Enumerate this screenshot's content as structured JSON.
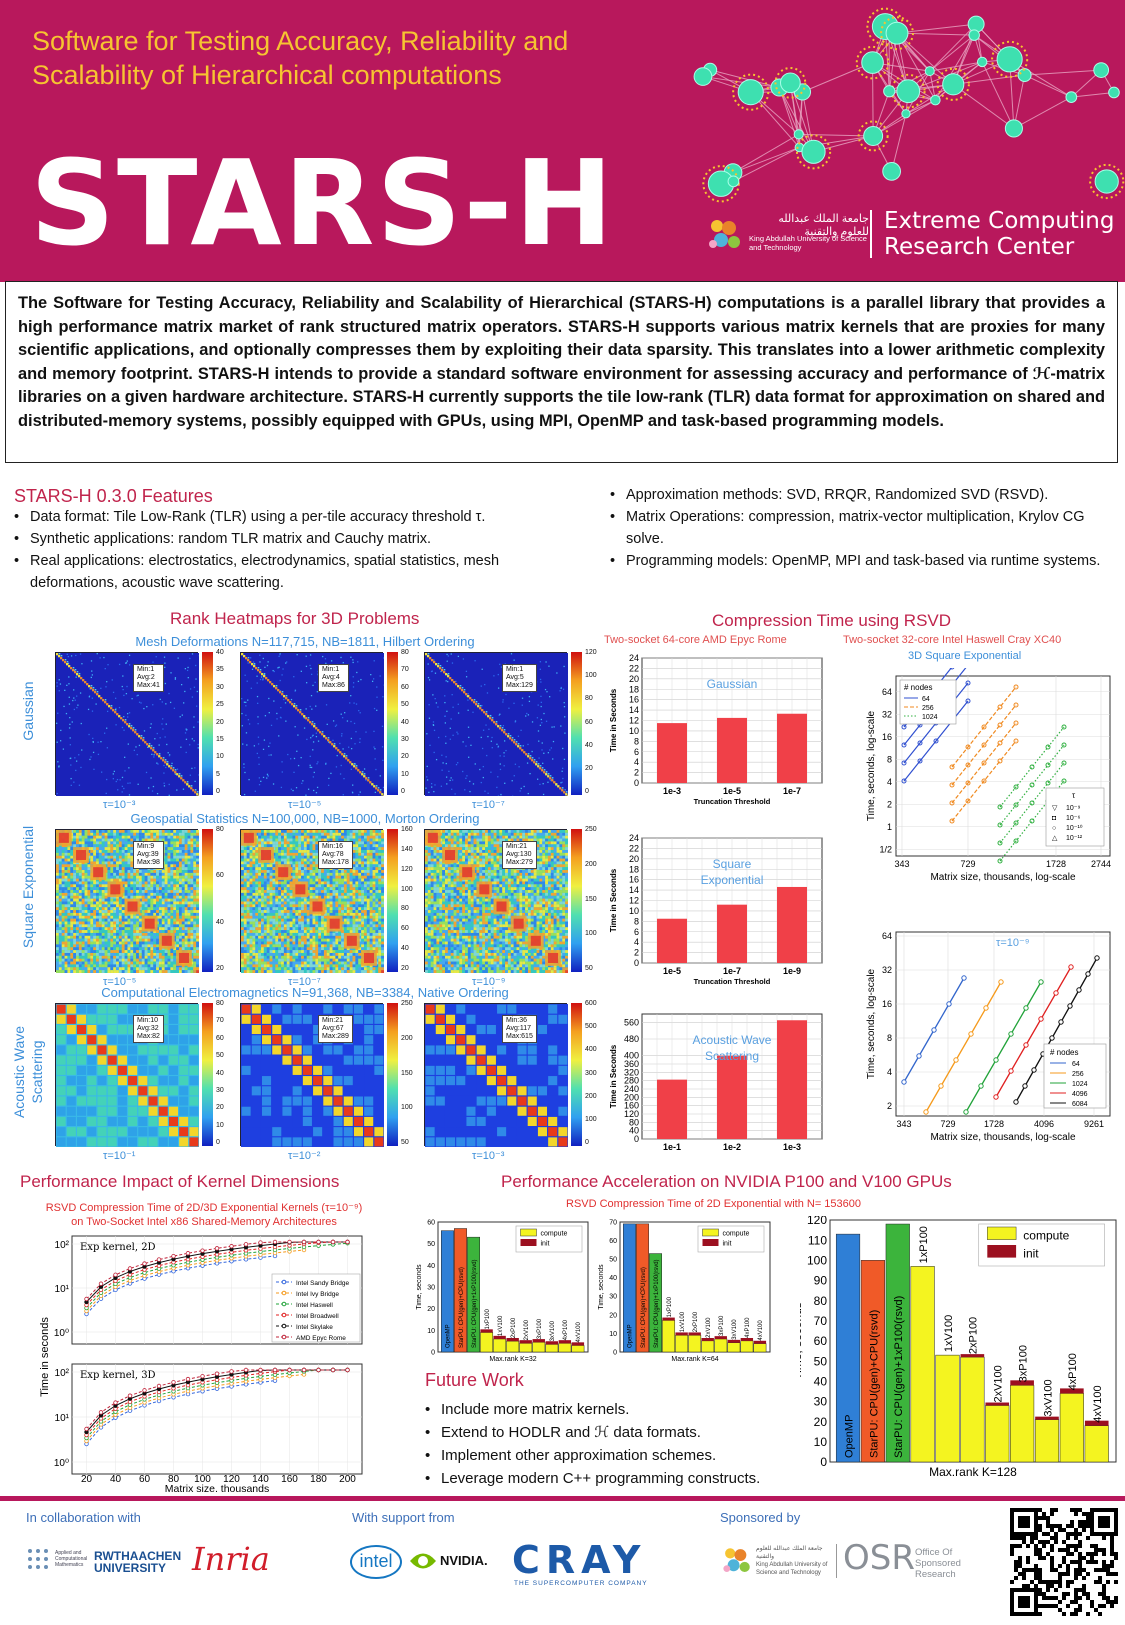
{
  "header": {
    "subtitle": "Software for Testing Accuracy, Reliability and Scalability of Hierarchical computations",
    "title": "STARS-H",
    "kaust_ar": "جامعة الملك عبدالله للعلوم والتقنية",
    "kaust_en": "King Abdullah University of Science and Technology",
    "ecrc_line1": "Extreme Computing",
    "ecrc_line2": "Research Center",
    "accent": "#b8185c",
    "gold": "#f6c431"
  },
  "abstract": "The Software for Testing Accuracy, Reliability and Scalability of Hierarchical (STARS-H) computations is a parallel library that provides a high performance matrix market of rank structured matrix operators. STARS-H supports various matrix kernels that are proxies for many scientific applications, and optionally compresses them by exploiting their data sparsity. This translates into a lower arithmetic complexity and memory footprint. STARS-H intends to provide a standard software environment for assessing accuracy and performance of ℋ-matrix libraries on a given hardware architecture. STARS-H currently supports the tile low-rank (TLR) data format for approximation on shared and distributed-memory systems, possibly equipped with GPUs, using MPI, OpenMP and task-based programming models.",
  "features": {
    "title": "STARS-H 0.3.0 Features",
    "left": [
      "Data format: Tile Low-Rank (TLR) using a per-tile accuracy threshold τ.",
      "Synthetic applications: random TLR matrix and Cauchy matrix.",
      "Real applications: electrostatics, electrodynamics, spatial statistics, mesh deformations, acoustic wave scattering."
    ],
    "right": [
      "Approximation methods: SVD, RRQR, Randomized SVD (RSVD).",
      "Matrix Operations: compression, matrix-vector multiplication, Krylov CG solve.",
      "Programming models: OpenMP, MPI and task-based via runtime systems."
    ]
  },
  "heatmaps": {
    "title": "Rank Heatmaps for 3D Problems",
    "rows": [
      {
        "subtitle": "Mesh Deformations N=117,715, NB=1811, Hilbert Ordering",
        "label": "Gaussian",
        "style": "blue",
        "maps": [
          {
            "info": [
              "Min:1",
              "Avg:2",
              "Max:41"
            ],
            "tau": "τ=10⁻³",
            "ticks": [
              "40",
              "35",
              "30",
              "25",
              "20",
              "15",
              "10",
              "5",
              "0"
            ]
          },
          {
            "info": [
              "Min:1",
              "Avg:4",
              "Max:86"
            ],
            "tau": "τ=10⁻⁵",
            "ticks": [
              "80",
              "70",
              "60",
              "50",
              "40",
              "30",
              "20",
              "10",
              "0"
            ]
          },
          {
            "info": [
              "Min:1",
              "Avg:5",
              "Max:129"
            ],
            "tau": "τ=10⁻⁷",
            "ticks": [
              "120",
              "100",
              "80",
              "60",
              "40",
              "20",
              "0"
            ]
          }
        ]
      },
      {
        "subtitle": "Geospatial Statistics N=100,000, NB=1000, Morton Ordering",
        "label": "Square Exponential",
        "style": "dense",
        "maps": [
          {
            "info": [
              "Min:9",
              "Avg:39",
              "Max:98"
            ],
            "tau": "τ=10⁻⁵",
            "ticks": [
              "80",
              "60",
              "40",
              "20"
            ]
          },
          {
            "info": [
              "Min:16",
              "Avg:78",
              "Max:178"
            ],
            "tau": "τ=10⁻⁷",
            "ticks": [
              "160",
              "140",
              "120",
              "100",
              "80",
              "60",
              "40",
              "20"
            ]
          },
          {
            "info": [
              "Min:21",
              "Avg:130",
              "Max:279"
            ],
            "tau": "τ=10⁻⁹",
            "ticks": [
              "250",
              "200",
              "150",
              "100",
              "50"
            ]
          }
        ]
      },
      {
        "subtitle": "Computational Electromagnetics N=91,368, NB=3384, Native Ordering",
        "label": "Acoustic Wave Scattering",
        "style": "block",
        "maps": [
          {
            "info": [
              "Min:10",
              "Avg:32",
              "Max:82"
            ],
            "tau": "τ=10⁻¹",
            "ticks": [
              "80",
              "70",
              "60",
              "50",
              "40",
              "30",
              "20",
              "10",
              "0"
            ]
          },
          {
            "info": [
              "Min:21",
              "Avg:67",
              "Max:289"
            ],
            "tau": "τ=10⁻²",
            "ticks": [
              "250",
              "200",
              "150",
              "100",
              "50"
            ]
          },
          {
            "info": [
              "Min:36",
              "Avg:117",
              "Max:615"
            ],
            "tau": "τ=10⁻³",
            "ticks": [
              "600",
              "500",
              "400",
              "300",
              "200",
              "100",
              "0"
            ]
          }
        ]
      }
    ]
  },
  "compression": {
    "title": "Compression Time using RSVD",
    "left_caption": "Two-socket 64-core AMD Epyc Rome",
    "right_caption_1": "Two-socket 32-core Intel Haswell Cray XC40",
    "right_caption_2": "3D Square Exponential",
    "ylabel": "Time in Seconds",
    "xlabel": "Truncation Threshold"
  },
  "perf_kernel": {
    "title": "Performance Impact of Kernel Dimensions",
    "caption_1": "RSVD Compression Time of 2D/3D Exponential Kernels (τ=10⁻⁹)",
    "caption_2": "on Two-Socket Intel x86 Shared-Memory Architectures",
    "ylabel": "Time in seconds",
    "xlabel": "Matrix size, thousands",
    "panel_2d": "Exp kernel, 2D",
    "panel_3d": "Exp kernel, 3D"
  },
  "gpu": {
    "title": "Performance Acceleration on NVIDIA P100 and V100 GPUs",
    "caption": "RSVD Compression Time of 2D Exponential with N= 153600",
    "ylabel": "Time, seconds",
    "legend_compute": "compute",
    "legend_init": "init"
  },
  "future": {
    "title": "Future Work",
    "items": [
      "Include more matrix kernels.",
      "Extend to HODLR and ℋ data formats.",
      "Implement other approximation schemes.",
      "Leverage modern C++ programming constructs."
    ]
  },
  "footer": {
    "collab": "In collaboration with",
    "support": "With support from",
    "sponsor": "Sponsored by",
    "rwth": "RWTHAACHEN UNIVERSITY",
    "inria": "Inria",
    "intel": "intel",
    "nvidia": "NVIDIA.",
    "cray": "CRAY",
    "cray_sub": "THE SUPERCOMPUTER COMPANY",
    "osr": "OSR",
    "osr_full": "Office Of Sponsored Research",
    "acm": "Applied and Computational Mathematics"
  },
  "chart_data": [
    {
      "type": "bar",
      "title": "Gaussian",
      "categories": [
        "1e-3",
        "1e-5",
        "1e-7"
      ],
      "values": [
        11.5,
        12.5,
        13.3
      ],
      "ylim": [
        0,
        24
      ],
      "yticks": [
        0,
        2,
        4,
        6,
        8,
        10,
        12,
        14,
        16,
        18,
        20,
        22,
        24
      ],
      "ylabel": "Time in Seconds",
      "xlabel": "Truncation Threshold",
      "color": "#f04048"
    },
    {
      "type": "bar",
      "title": "Square Exponential",
      "categories": [
        "1e-5",
        "1e-7",
        "1e-9"
      ],
      "values": [
        8.5,
        11.2,
        14.6
      ],
      "ylim": [
        0,
        24
      ],
      "yticks": [
        0,
        2,
        4,
        6,
        8,
        10,
        12,
        14,
        16,
        18,
        20,
        22,
        24
      ],
      "ylabel": "Time in Seconds",
      "xlabel": "Truncation Threshold",
      "color": "#f04048"
    },
    {
      "type": "bar",
      "title": "Acoustic Wave Scattering",
      "categories": [
        "1e-1",
        "1e-2",
        "1e-3"
      ],
      "values": [
        285,
        400,
        570
      ],
      "ylim": [
        0,
        600
      ],
      "yticks": [
        0,
        40,
        80,
        120,
        160,
        200,
        240,
        280,
        320,
        360,
        400,
        480,
        560
      ],
      "ylabel": "Time in Seconds",
      "xlabel": "Truncation Threshold",
      "color": "#f04048"
    },
    {
      "type": "line",
      "log_x": true,
      "log_y": true,
      "xticks": [
        "343",
        "729",
        "1728",
        "2744"
      ],
      "yticks": [
        "1/2",
        "1",
        "2",
        "4",
        "8",
        "16",
        "32",
        "64"
      ],
      "xlabel": "Matrix size, thousands, log-scale",
      "ylabel": "Time, seconds, log-scale",
      "legend_nodes_title": "# nodes",
      "legend_tau_title": "τ",
      "nodes": [
        "64",
        "256",
        "1024"
      ],
      "taus": [
        "10⁻⁹",
        "10⁻⁶",
        "10⁻¹⁰",
        "10⁻¹²"
      ]
    },
    {
      "type": "line",
      "log_x": true,
      "log_y": true,
      "annotation": "τ=10⁻⁹",
      "xticks": [
        "343",
        "729",
        "1728",
        "4096",
        "9261"
      ],
      "yticks": [
        "2",
        "4",
        "8",
        "16",
        "32",
        "64"
      ],
      "xlabel": "Matrix size, thousands, log-scale",
      "ylabel": "Time, seconds, log-scale",
      "legend_title": "# nodes",
      "series": [
        {
          "name": "64",
          "color": "#3366cc"
        },
        {
          "name": "256",
          "color": "#f59a1c"
        },
        {
          "name": "1024",
          "color": "#22a33a"
        },
        {
          "name": "4096",
          "color": "#e02020"
        },
        {
          "name": "6084",
          "color": "#111111"
        }
      ]
    },
    {
      "type": "line",
      "log_y": true,
      "panels": [
        "Exp kernel, 2D",
        "Exp kernel, 3D"
      ],
      "xticks": [
        20,
        40,
        60,
        80,
        100,
        120,
        140,
        160,
        180,
        200
      ],
      "series": [
        {
          "name": "Intel Sandy Bridge",
          "color": "#3366dd"
        },
        {
          "name": "Intel Ivy Bridge",
          "color": "#f59a1c"
        },
        {
          "name": "Intel Haswell",
          "color": "#22a33a"
        },
        {
          "name": "Intel Broadwell",
          "color": "#e02020"
        },
        {
          "name": "Intel Skylake",
          "color": "#111111"
        },
        {
          "name": "AMD Epyc Rome",
          "color": "#c0243a"
        }
      ]
    },
    {
      "type": "bar",
      "xlabel": "Max.rank K=32",
      "ylim": [
        0,
        60
      ],
      "yticks": [
        0,
        10,
        20,
        30,
        40,
        50,
        60
      ],
      "bars": [
        {
          "label": "OpenMP",
          "value": 56,
          "color": "#2f7fd6"
        },
        {
          "label": "StarPU: CPU(gen)+CPU(rsvd)",
          "value": 57,
          "color": "#f05a28"
        },
        {
          "label": "StarPU: CPU(gen)+1xP100(rsvd)",
          "value": 53,
          "color": "#3cb43c"
        },
        {
          "label": "1xP100",
          "value": 9,
          "init": 1,
          "color": "#f4f420"
        },
        {
          "label": "1xV100",
          "value": 6,
          "init": 1,
          "color": "#f4f420"
        },
        {
          "label": "2xP100",
          "value": 5,
          "init": 1,
          "color": "#f4f420"
        },
        {
          "label": "2xV100",
          "value": 4,
          "init": 1,
          "color": "#f4f420"
        },
        {
          "label": "3xP100",
          "value": 4.5,
          "init": 1,
          "color": "#f4f420"
        },
        {
          "label": "3xV100",
          "value": 3.5,
          "init": 1,
          "color": "#f4f420"
        },
        {
          "label": "4xP100",
          "value": 4,
          "init": 1,
          "color": "#f4f420"
        },
        {
          "label": "4xV100",
          "value": 3,
          "init": 1,
          "color": "#f4f420"
        }
      ]
    },
    {
      "type": "bar",
      "xlabel": "Max.rank K=64",
      "ylim": [
        0,
        70
      ],
      "yticks": [
        0,
        10,
        20,
        30,
        40,
        50,
        60,
        70
      ],
      "bars": [
        {
          "label": "OpenMP",
          "value": 69,
          "color": "#2f7fd6"
        },
        {
          "label": "StarPU: CPU(gen)+CPU(rsvd)",
          "value": 69,
          "color": "#f05a28"
        },
        {
          "label": "StarPU: CPU(gen)+1xP100(rsvd)",
          "value": 53,
          "color": "#3cb43c"
        },
        {
          "label": "1xP100",
          "value": 17,
          "init": 1,
          "color": "#f4f420"
        },
        {
          "label": "1xV100",
          "value": 9,
          "init": 1,
          "color": "#f4f420"
        },
        {
          "label": "2xP100",
          "value": 9,
          "init": 1,
          "color": "#f4f420"
        },
        {
          "label": "2xV100",
          "value": 6,
          "init": 1,
          "color": "#f4f420"
        },
        {
          "label": "3xP100",
          "value": 7,
          "init": 1,
          "color": "#f4f420"
        },
        {
          "label": "3xV100",
          "value": 5,
          "init": 1,
          "color": "#f4f420"
        },
        {
          "label": "4xP100",
          "value": 6,
          "init": 1,
          "color": "#f4f420"
        },
        {
          "label": "4xV100",
          "value": 4.5,
          "init": 1,
          "color": "#f4f420"
        }
      ]
    },
    {
      "type": "bar",
      "xlabel": "Max.rank K=128",
      "ylim": [
        0,
        120
      ],
      "yticks": [
        0,
        10,
        20,
        30,
        40,
        50,
        60,
        70,
        80,
        90,
        100,
        110,
        120
      ],
      "bars": [
        {
          "label": "OpenMP",
          "value": 113,
          "color": "#2f7fd6"
        },
        {
          "label": "StarPU: CPU(gen)+CPU(rsvd)",
          "value": 100,
          "color": "#f05a28"
        },
        {
          "label": "StarPU: CPU(gen)+1xP100(rsvd)",
          "value": 118,
          "color": "#3cb43c"
        },
        {
          "label": "1xP100",
          "value": 97,
          "init": 0,
          "color": "#f4f420"
        },
        {
          "label": "1xV100",
          "value": 53,
          "init": 0,
          "color": "#f4f420"
        },
        {
          "label": "2xP100",
          "value": 52,
          "init": 1,
          "color": "#f4f420"
        },
        {
          "label": "2xV100",
          "value": 28,
          "init": 1,
          "color": "#f4f420"
        },
        {
          "label": "3xP100",
          "value": 38,
          "init": 2,
          "color": "#f4f420"
        },
        {
          "label": "3xV100",
          "value": 21,
          "init": 1,
          "color": "#f4f420"
        },
        {
          "label": "4xP100",
          "value": 34,
          "init": 2,
          "color": "#f4f420"
        },
        {
          "label": "4xV100",
          "value": 18,
          "init": 2,
          "color": "#f4f420"
        }
      ]
    }
  ]
}
